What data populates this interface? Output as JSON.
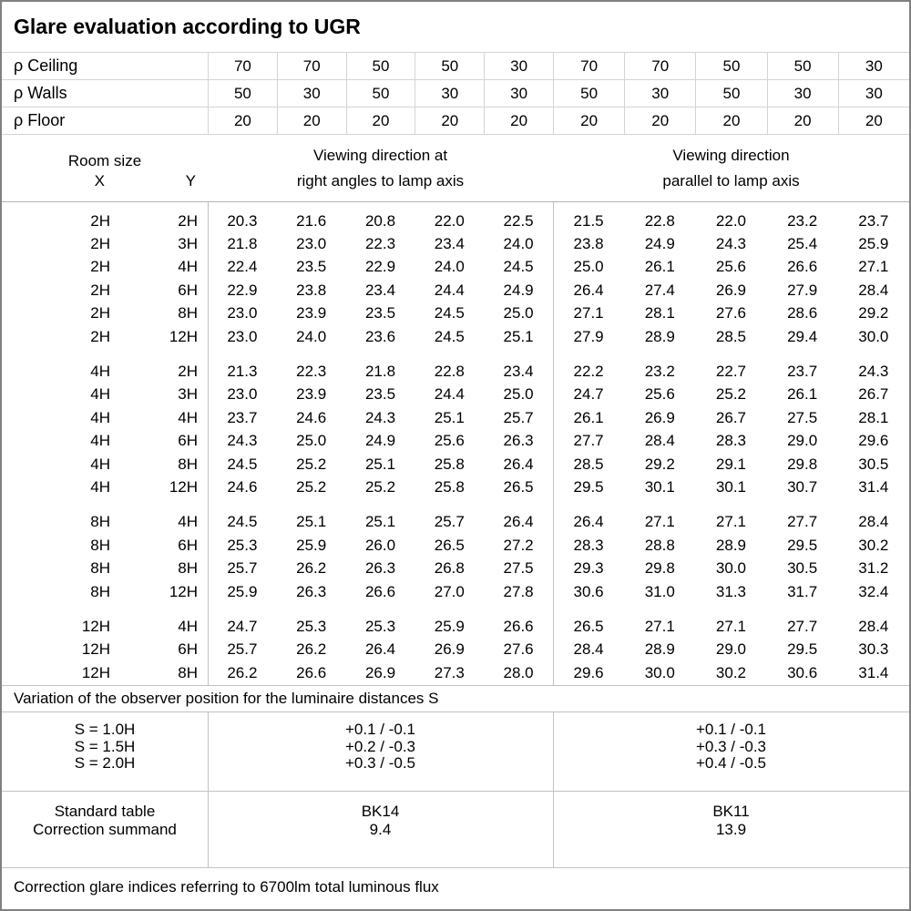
{
  "title": "Glare evaluation according to UGR",
  "colors": {
    "background": "#ffffff",
    "text": "#000000",
    "grid_line": "#c2c2c2",
    "outer_border": "#808080"
  },
  "reflectance": {
    "rows": [
      {
        "label": "ρ Ceiling",
        "values": [
          "70",
          "70",
          "50",
          "50",
          "30",
          "70",
          "70",
          "50",
          "50",
          "30"
        ]
      },
      {
        "label": "ρ Walls",
        "values": [
          "50",
          "30",
          "50",
          "30",
          "30",
          "50",
          "30",
          "50",
          "30",
          "30"
        ]
      },
      {
        "label": "ρ Floor",
        "values": [
          "20",
          "20",
          "20",
          "20",
          "20",
          "20",
          "20",
          "20",
          "20",
          "20"
        ]
      }
    ]
  },
  "room_header": {
    "title": "Room size",
    "x_label": "X",
    "y_label": "Y"
  },
  "viewing_headers": {
    "right_angles": [
      "Viewing direction at",
      "right angles to lamp axis"
    ],
    "parallel": [
      "Viewing direction",
      "parallel to lamp axis"
    ]
  },
  "blocks": [
    {
      "rows": [
        {
          "x": "2H",
          "y": "2H",
          "values": [
            "20.3",
            "21.6",
            "20.8",
            "22.0",
            "22.5",
            "21.5",
            "22.8",
            "22.0",
            "23.2",
            "23.7"
          ]
        },
        {
          "x": "2H",
          "y": "3H",
          "values": [
            "21.8",
            "23.0",
            "22.3",
            "23.4",
            "24.0",
            "23.8",
            "24.9",
            "24.3",
            "25.4",
            "25.9"
          ]
        },
        {
          "x": "2H",
          "y": "4H",
          "values": [
            "22.4",
            "23.5",
            "22.9",
            "24.0",
            "24.5",
            "25.0",
            "26.1",
            "25.6",
            "26.6",
            "27.1"
          ]
        },
        {
          "x": "2H",
          "y": "6H",
          "values": [
            "22.9",
            "23.8",
            "23.4",
            "24.4",
            "24.9",
            "26.4",
            "27.4",
            "26.9",
            "27.9",
            "28.4"
          ]
        },
        {
          "x": "2H",
          "y": "8H",
          "values": [
            "23.0",
            "23.9",
            "23.5",
            "24.5",
            "25.0",
            "27.1",
            "28.1",
            "27.6",
            "28.6",
            "29.2"
          ]
        },
        {
          "x": "2H",
          "y": "12H",
          "values": [
            "23.0",
            "24.0",
            "23.6",
            "24.5",
            "25.1",
            "27.9",
            "28.9",
            "28.5",
            "29.4",
            "30.0"
          ]
        }
      ]
    },
    {
      "rows": [
        {
          "x": "4H",
          "y": "2H",
          "values": [
            "21.3",
            "22.3",
            "21.8",
            "22.8",
            "23.4",
            "22.2",
            "23.2",
            "22.7",
            "23.7",
            "24.3"
          ]
        },
        {
          "x": "4H",
          "y": "3H",
          "values": [
            "23.0",
            "23.9",
            "23.5",
            "24.4",
            "25.0",
            "24.7",
            "25.6",
            "25.2",
            "26.1",
            "26.7"
          ]
        },
        {
          "x": "4H",
          "y": "4H",
          "values": [
            "23.7",
            "24.6",
            "24.3",
            "25.1",
            "25.7",
            "26.1",
            "26.9",
            "26.7",
            "27.5",
            "28.1"
          ]
        },
        {
          "x": "4H",
          "y": "6H",
          "values": [
            "24.3",
            "25.0",
            "24.9",
            "25.6",
            "26.3",
            "27.7",
            "28.4",
            "28.3",
            "29.0",
            "29.6"
          ]
        },
        {
          "x": "4H",
          "y": "8H",
          "values": [
            "24.5",
            "25.2",
            "25.1",
            "25.8",
            "26.4",
            "28.5",
            "29.2",
            "29.1",
            "29.8",
            "30.5"
          ]
        },
        {
          "x": "4H",
          "y": "12H",
          "values": [
            "24.6",
            "25.2",
            "25.2",
            "25.8",
            "26.5",
            "29.5",
            "30.1",
            "30.1",
            "30.7",
            "31.4"
          ]
        }
      ]
    },
    {
      "rows": [
        {
          "x": "8H",
          "y": "4H",
          "values": [
            "24.5",
            "25.1",
            "25.1",
            "25.7",
            "26.4",
            "26.4",
            "27.1",
            "27.1",
            "27.7",
            "28.4"
          ]
        },
        {
          "x": "8H",
          "y": "6H",
          "values": [
            "25.3",
            "25.9",
            "26.0",
            "26.5",
            "27.2",
            "28.3",
            "28.8",
            "28.9",
            "29.5",
            "30.2"
          ]
        },
        {
          "x": "8H",
          "y": "8H",
          "values": [
            "25.7",
            "26.2",
            "26.3",
            "26.8",
            "27.5",
            "29.3",
            "29.8",
            "30.0",
            "30.5",
            "31.2"
          ]
        },
        {
          "x": "8H",
          "y": "12H",
          "values": [
            "25.9",
            "26.3",
            "26.6",
            "27.0",
            "27.8",
            "30.6",
            "31.0",
            "31.3",
            "31.7",
            "32.4"
          ]
        }
      ]
    },
    {
      "rows": [
        {
          "x": "12H",
          "y": "4H",
          "values": [
            "24.7",
            "25.3",
            "25.3",
            "25.9",
            "26.6",
            "26.5",
            "27.1",
            "27.1",
            "27.7",
            "28.4"
          ]
        },
        {
          "x": "12H",
          "y": "6H",
          "values": [
            "25.7",
            "26.2",
            "26.4",
            "26.9",
            "27.6",
            "28.4",
            "28.9",
            "29.0",
            "29.5",
            "30.3"
          ]
        },
        {
          "x": "12H",
          "y": "8H",
          "values": [
            "26.2",
            "26.6",
            "26.9",
            "27.3",
            "28.0",
            "29.6",
            "30.0",
            "30.2",
            "30.6",
            "31.4"
          ]
        }
      ]
    }
  ],
  "variation": {
    "heading": "Variation of the observer position for the luminaire distances S",
    "rows": [
      {
        "s": "S = 1.0H",
        "right_angles": "+0.1 / -0.1",
        "parallel": "+0.1 / -0.1"
      },
      {
        "s": "S = 1.5H",
        "right_angles": "+0.2 / -0.3",
        "parallel": "+0.3 / -0.3"
      },
      {
        "s": "S = 2.0H",
        "right_angles": "+0.3 / -0.5",
        "parallel": "+0.4 / -0.5"
      }
    ]
  },
  "standard": {
    "rows": [
      {
        "label": "Standard table",
        "right_angles": "BK14",
        "parallel": "BK11"
      },
      {
        "label": "Correction summand",
        "right_angles": "9.4",
        "parallel": "13.9"
      }
    ]
  },
  "footer": "Correction glare indices referring to 6700lm total luminous flux"
}
